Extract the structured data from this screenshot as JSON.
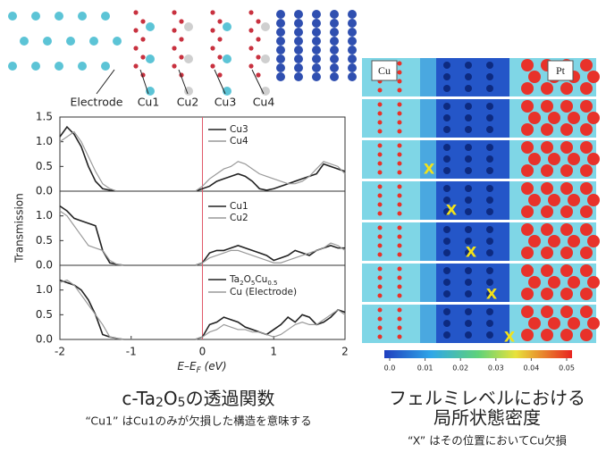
{
  "structure_labels": [
    "Electrode",
    "Cu1",
    "Cu2",
    "Cu3",
    "Cu4"
  ],
  "y_axis_label": "Transmission",
  "chart_data": [
    {
      "type": "line",
      "xlim": [
        -2,
        2
      ],
      "ylim": [
        0,
        1.5
      ],
      "yticks": [
        {
          "value": 0,
          "label": "0.0"
        },
        0.5,
        {
          "value": 1,
          "label": "1.0"
        },
        1.5
      ],
      "vline": 0,
      "vline_color": "#e05a6a",
      "x": [
        -2,
        -1.9,
        -1.8,
        -1.7,
        -1.6,
        -1.5,
        -1.4,
        -1.3,
        -1.2,
        -1.1,
        -1,
        -0.9,
        -0.8,
        -0.7,
        -0.6,
        -0.5,
        -0.4,
        -0.3,
        -0.2,
        -0.1,
        0,
        0.1,
        0.2,
        0.3,
        0.4,
        0.5,
        0.6,
        0.7,
        0.8,
        0.9,
        1,
        1.1,
        1.2,
        1.3,
        1.4,
        1.5,
        1.6,
        1.7,
        1.8,
        1.9,
        2
      ],
      "series": [
        {
          "name": [
            "Cu3"
          ],
          "color": "#222222",
          "values": [
            1.1,
            1.3,
            1.15,
            0.9,
            0.5,
            0.2,
            0.05,
            0.02,
            0,
            0,
            0,
            0,
            0,
            0,
            0,
            0,
            0,
            0,
            0,
            0,
            0.05,
            0.1,
            0.2,
            0.25,
            0.3,
            0.35,
            0.3,
            0.2,
            0.05,
            0.02,
            0.05,
            0.1,
            0.15,
            0.2,
            0.25,
            0.3,
            0.35,
            0.55,
            0.5,
            0.45,
            0.4
          ]
        },
        {
          "name": [
            "Cu4"
          ],
          "color": "#999999",
          "values": [
            1.0,
            1.1,
            1.2,
            1.0,
            0.7,
            0.4,
            0.15,
            0.05,
            0,
            0,
            0,
            0,
            0,
            0,
            0,
            0,
            0,
            0,
            0,
            0,
            0.1,
            0.25,
            0.35,
            0.45,
            0.5,
            0.6,
            0.55,
            0.45,
            0.35,
            0.3,
            0.25,
            0.2,
            0.15,
            0.15,
            0.2,
            0.3,
            0.45,
            0.6,
            0.55,
            0.5,
            0.35
          ]
        }
      ]
    },
    {
      "type": "line",
      "xlim": [
        -2,
        2
      ],
      "ylim": [
        0,
        1.5
      ],
      "yticks": [
        {
          "value": 0,
          "label": "0.0"
        },
        0.5,
        {
          "value": 1,
          "label": "1.0"
        }
      ],
      "vline": 0,
      "vline_color": "#e05a6a",
      "x": [
        -2,
        -1.9,
        -1.8,
        -1.7,
        -1.6,
        -1.5,
        -1.4,
        -1.3,
        -1.2,
        -1.1,
        -1,
        -0.9,
        -0.8,
        -0.7,
        -0.6,
        -0.5,
        -0.4,
        -0.3,
        -0.2,
        -0.1,
        0,
        0.1,
        0.2,
        0.3,
        0.4,
        0.5,
        0.6,
        0.7,
        0.8,
        0.9,
        1,
        1.1,
        1.2,
        1.3,
        1.4,
        1.5,
        1.6,
        1.7,
        1.8,
        1.9,
        2
      ],
      "series": [
        {
          "name": [
            "Cu1"
          ],
          "color": "#222222",
          "values": [
            1.2,
            1.1,
            0.95,
            0.9,
            0.85,
            0.8,
            0.3,
            0.05,
            0.02,
            0,
            0,
            0,
            0,
            0,
            0,
            0,
            0,
            0,
            0,
            0,
            0.05,
            0.25,
            0.3,
            0.3,
            0.35,
            0.4,
            0.35,
            0.3,
            0.25,
            0.2,
            0.1,
            0.15,
            0.2,
            0.3,
            0.25,
            0.2,
            0.3,
            0.35,
            0.4,
            0.35,
            0.35
          ]
        },
        {
          "name": [
            "Cu2"
          ],
          "color": "#999999",
          "values": [
            1.1,
            1.0,
            0.8,
            0.6,
            0.4,
            0.35,
            0.3,
            0.1,
            0.02,
            0,
            0,
            0,
            0,
            0,
            0,
            0,
            0,
            0,
            0,
            0,
            0.05,
            0.15,
            0.2,
            0.25,
            0.3,
            0.3,
            0.25,
            0.2,
            0.15,
            0.1,
            0.05,
            0.05,
            0.1,
            0.15,
            0.2,
            0.25,
            0.3,
            0.35,
            0.45,
            0.4,
            0.3
          ]
        }
      ]
    },
    {
      "type": "line",
      "xlim": [
        -2,
        2
      ],
      "ylim": [
        0,
        1.5
      ],
      "yticks": [
        {
          "value": 0,
          "label": "0.0"
        },
        0.5,
        {
          "value": 1,
          "label": "1.0"
        }
      ],
      "xticks": [
        -2,
        -1,
        0,
        1,
        2
      ],
      "xlabel": [
        "E–E",
        "F",
        " (eV)"
      ],
      "vline": 0,
      "vline_color": "#e05a6a",
      "x": [
        -2,
        -1.9,
        -1.8,
        -1.7,
        -1.6,
        -1.5,
        -1.4,
        -1.3,
        -1.2,
        -1.1,
        -1,
        -0.9,
        -0.8,
        -0.7,
        -0.6,
        -0.5,
        -0.4,
        -0.3,
        -0.2,
        -0.1,
        0,
        0.1,
        0.2,
        0.3,
        0.4,
        0.5,
        0.6,
        0.7,
        0.8,
        0.9,
        1,
        1.1,
        1.2,
        1.3,
        1.4,
        1.5,
        1.6,
        1.7,
        1.8,
        1.9,
        2
      ],
      "series": [
        {
          "name": [
            "Ta",
            "2",
            "O",
            "5",
            "Cu",
            "0.5"
          ],
          "color": "#222222",
          "values": [
            1.2,
            1.15,
            1.1,
            1.0,
            0.8,
            0.5,
            0.1,
            0.05,
            0.02,
            0,
            0,
            0,
            0,
            0,
            0,
            0,
            0,
            0,
            0,
            0,
            0.05,
            0.3,
            0.35,
            0.45,
            0.4,
            0.35,
            0.25,
            0.2,
            0.15,
            0.1,
            0.2,
            0.3,
            0.45,
            0.35,
            0.5,
            0.45,
            0.3,
            0.35,
            0.45,
            0.6,
            0.55
          ]
        },
        {
          "name": [
            "Cu (Electrode)"
          ],
          "color": "#999999",
          "values": [
            1.15,
            1.2,
            1.1,
            0.9,
            0.7,
            0.5,
            0.3,
            0.05,
            0.02,
            0,
            0,
            0,
            0,
            0,
            0,
            0,
            0,
            0,
            0,
            0,
            0.05,
            0.15,
            0.2,
            0.3,
            0.25,
            0.2,
            0.2,
            0.15,
            0.15,
            0.1,
            0.05,
            0.1,
            0.2,
            0.3,
            0.35,
            0.3,
            0.3,
            0.4,
            0.5,
            0.6,
            0.5
          ]
        }
      ]
    }
  ],
  "left_caption": {
    "title": [
      "c-Ta",
      "2",
      "O",
      "5",
      "の透過関数"
    ],
    "note": "“Cu1” はCu1のみが欠損した構造を意味する"
  },
  "dos_map": {
    "left_label": "Cu",
    "right_label": "Pt",
    "markers": [
      "X",
      "X",
      "X",
      "X",
      "X"
    ],
    "colorbar": {
      "range": [
        0,
        0.05
      ],
      "ticks": [
        {
          "value": 0,
          "label": "0.0"
        },
        0.01,
        0.02,
        0.03,
        0.04,
        0.05
      ]
    }
  },
  "right_caption": {
    "title_lines": [
      "フェルミレベルにおける",
      "局所状態密度"
    ],
    "note": "“X” はその位置においてCu欠損"
  }
}
